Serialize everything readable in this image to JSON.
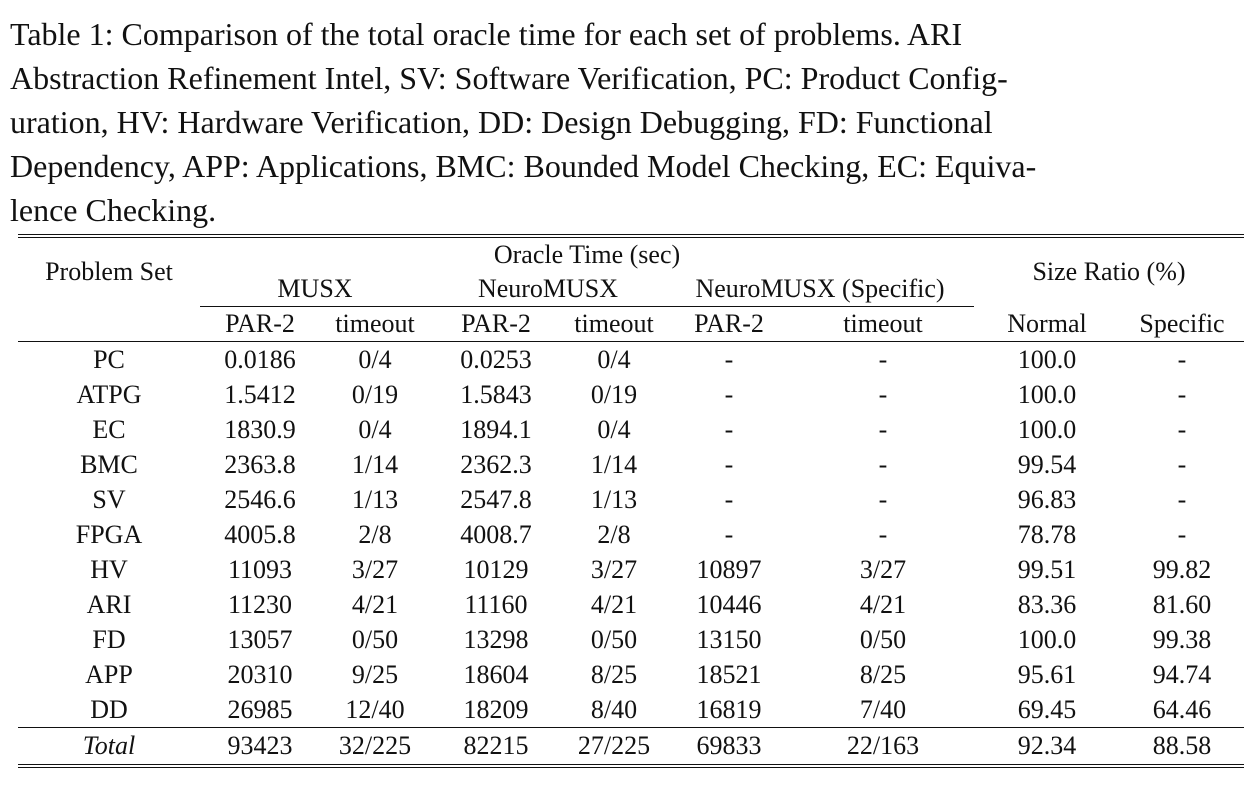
{
  "caption_lines": [
    "Table 1: Comparison of the total oracle time for each set of problems. ARI",
    "Abstraction Refinement Intel, SV: Software Verification, PC: Product Config-",
    "uration, HV: Hardware Verification, DD: Design Debugging, FD: Functional",
    "Dependency, APP: Applications, BMC: Bounded Model Checking, EC: Equiva-",
    "lence Checking."
  ],
  "header": {
    "problem_set": "Problem Set",
    "oracle_time": "Oracle Time (sec)",
    "size_ratio": "Size Ratio (%)",
    "musx": "MUSX",
    "neuromusx": "NeuroMUSX",
    "neuromusx_specific": "NeuroMUSX (Specific)",
    "par2": "PAR-2",
    "timeout": "timeout",
    "normal": "Normal",
    "specific": "Specific"
  },
  "rows": [
    {
      "name": "PC",
      "musx_par2": "0.0186",
      "musx_to": "0/4",
      "nm_par2": "0.0253",
      "nm_to": "0/4",
      "nms_par2": "-",
      "nms_to": "-",
      "normal": "100.0",
      "specific": "-",
      "bold": []
    },
    {
      "name": "ATPG",
      "musx_par2": "1.5412",
      "musx_to": "0/19",
      "nm_par2": "1.5843",
      "nm_to": "0/19",
      "nms_par2": "-",
      "nms_to": "-",
      "normal": "100.0",
      "specific": "-",
      "bold": []
    },
    {
      "name": "EC",
      "musx_par2": "1830.9",
      "musx_to": "0/4",
      "nm_par2": "1894.1",
      "nm_to": "0/4",
      "nms_par2": "-",
      "nms_to": "-",
      "normal": "100.0",
      "specific": "-",
      "bold": []
    },
    {
      "name": "BMC",
      "musx_par2": "2363.8",
      "musx_to": "1/14",
      "nm_par2": "2362.3",
      "nm_to": "1/14",
      "nms_par2": "-",
      "nms_to": "-",
      "normal": "99.54",
      "specific": "-",
      "bold": [
        "nm_par2",
        "normal"
      ]
    },
    {
      "name": "SV",
      "musx_par2": "2546.6",
      "musx_to": "1/13",
      "nm_par2": "2547.8",
      "nm_to": "1/13",
      "nms_par2": "-",
      "nms_to": "-",
      "normal": "96.83",
      "specific": "-",
      "bold": [
        "normal"
      ]
    },
    {
      "name": "FPGA",
      "musx_par2": "4005.8",
      "musx_to": "2/8",
      "nm_par2": "4008.7",
      "nm_to": "2/8",
      "nms_par2": "-",
      "nms_to": "-",
      "normal": "78.78",
      "specific": "-",
      "bold": [
        "normal"
      ]
    },
    {
      "name": "HV",
      "musx_par2": "11093",
      "musx_to": "3/27",
      "nm_par2": "10129",
      "nm_to": "3/27",
      "nms_par2": "10897",
      "nms_to": "3/27",
      "normal": "99.51",
      "specific": "99.82",
      "bold": [
        "nm_par2",
        "nms_par2",
        "normal",
        "specific"
      ]
    },
    {
      "name": "ARI",
      "musx_par2": "11230",
      "musx_to": "4/21",
      "nm_par2": "11160",
      "nm_to": "4/21",
      "nms_par2": "10446",
      "nms_to": "4/21",
      "normal": "83.36",
      "specific": "81.60",
      "bold": [
        "nm_par2",
        "nms_par2",
        "normal",
        "specific"
      ]
    },
    {
      "name": "FD",
      "musx_par2": "13057",
      "musx_to": "0/50",
      "nm_par2": "13298",
      "nm_to": "0/50",
      "nms_par2": "13150",
      "nms_to": "0/50",
      "normal": "100.0",
      "specific": "99.38",
      "bold": [
        "specific"
      ]
    },
    {
      "name": "APP",
      "musx_par2": "20310",
      "musx_to": "9/25",
      "nm_par2": "18604",
      "nm_to": "8/25",
      "nms_par2": "18521",
      "nms_to": "8/25",
      "normal": "95.61",
      "specific": "94.74",
      "bold": [
        "nm_par2",
        "nm_to",
        "nms_par2",
        "nms_to",
        "normal",
        "specific"
      ]
    },
    {
      "name": "DD",
      "musx_par2": "26985",
      "musx_to": "12/40",
      "nm_par2": "18209",
      "nm_to": "8/40",
      "nms_par2": "16819",
      "nms_to": "7/40",
      "normal": "69.45",
      "specific": "64.46",
      "bold": [
        "nm_par2",
        "nm_to",
        "nms_par2",
        "nms_to",
        "normal",
        "specific"
      ]
    }
  ],
  "total": {
    "name": "Total",
    "musx_par2": "93423",
    "musx_to": "32/225",
    "nm_par2": "82215",
    "nm_to": "27/225",
    "nms_par2": "69833",
    "nms_to": "22/163",
    "normal": "92.34",
    "specific": "88.58",
    "bold": [
      "nm_par2",
      "nm_to",
      "nms_par2",
      "nms_to",
      "normal",
      "specific"
    ]
  }
}
